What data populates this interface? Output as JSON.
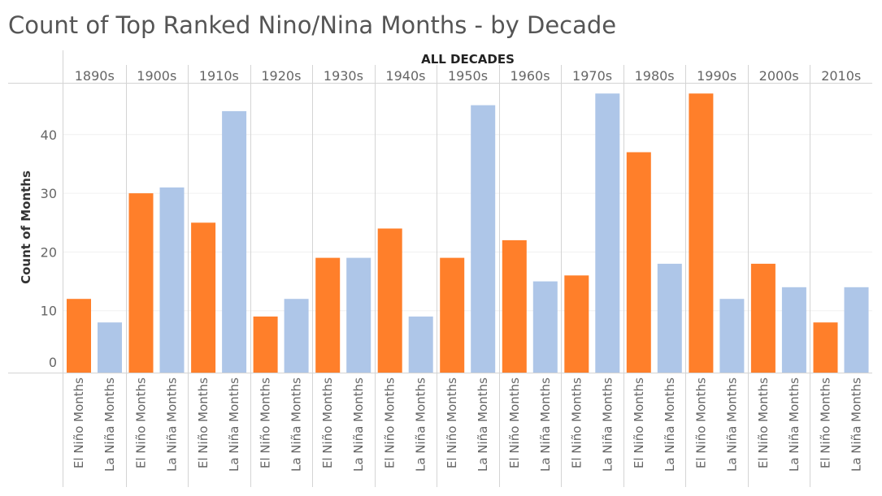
{
  "chart_data": {
    "type": "bar",
    "title": "Count of Top Ranked Nino/Nina Months - by Decade",
    "column_header": "ALL DECADES",
    "ylabel": "Count of Months",
    "ylim": [
      0,
      50
    ],
    "yticks": [
      0,
      10,
      20,
      30,
      40
    ],
    "decades": [
      "1890s",
      "1900s",
      "1910s",
      "1920s",
      "1930s",
      "1940s",
      "1950s",
      "1960s",
      "1970s",
      "1980s",
      "1990s",
      "2000s",
      "2010s"
    ],
    "series": [
      {
        "name": "El Niño Months",
        "color": "#ff7f2a",
        "values": [
          12,
          30,
          25,
          9,
          19,
          24,
          19,
          22,
          16,
          37,
          47,
          18,
          8
        ]
      },
      {
        "name": "La Niña Months",
        "color": "#aec6e8",
        "values": [
          8,
          31,
          44,
          12,
          19,
          9,
          45,
          15,
          47,
          18,
          12,
          14,
          14
        ]
      }
    ]
  }
}
